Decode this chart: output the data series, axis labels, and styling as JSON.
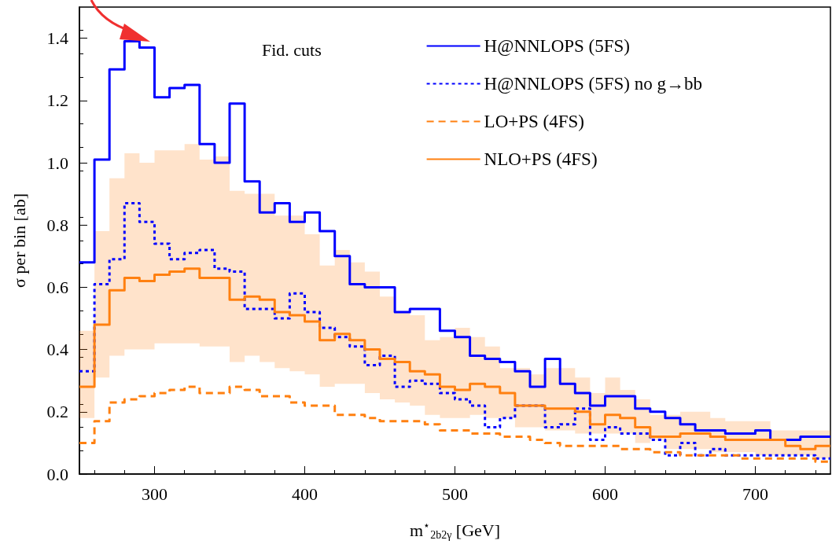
{
  "chart_data": {
    "type": "step",
    "xlabel": "m$^{⋆}$$_{2b2γ}$ [GeV]",
    "ylabel": "σ per bin [ab]",
    "annotations": [
      "Fid. cuts"
    ],
    "x": [
      250,
      260,
      270,
      280,
      290,
      300,
      310,
      320,
      330,
      340,
      350,
      360,
      370,
      380,
      390,
      400,
      410,
      420,
      430,
      440,
      450,
      460,
      470,
      480,
      490,
      500,
      510,
      520,
      530,
      540,
      550,
      560,
      570,
      580,
      590,
      600,
      610,
      620,
      630,
      640,
      650,
      660,
      670,
      680,
      690,
      700,
      710,
      720,
      730,
      740,
      750
    ],
    "series": [
      {
        "name": "H@NNLOPS (5FS)",
        "color": "#0000ff",
        "line_style": "solid",
        "values": [
          0.68,
          1.01,
          1.3,
          1.39,
          1.37,
          1.21,
          1.24,
          1.25,
          1.06,
          1.0,
          1.19,
          0.94,
          0.84,
          0.87,
          0.81,
          0.84,
          0.78,
          0.7,
          0.61,
          0.6,
          0.6,
          0.52,
          0.53,
          0.53,
          0.46,
          0.44,
          0.38,
          0.37,
          0.36,
          0.33,
          0.28,
          0.37,
          0.29,
          0.26,
          0.22,
          0.25,
          0.25,
          0.21,
          0.2,
          0.18,
          0.16,
          0.14,
          0.14,
          0.13,
          0.13,
          0.14,
          0.11,
          0.11,
          0.12,
          0.12,
          0.12
        ]
      },
      {
        "name": "H@NNLOPS (5FS) no g→bb",
        "color": "#0000ff",
        "line_style": "dotted",
        "values": [
          0.33,
          0.61,
          0.69,
          0.87,
          0.81,
          0.74,
          0.69,
          0.71,
          0.72,
          0.66,
          0.65,
          0.53,
          0.53,
          0.5,
          0.58,
          0.52,
          0.47,
          0.44,
          0.41,
          0.35,
          0.38,
          0.28,
          0.3,
          0.29,
          0.26,
          0.24,
          0.22,
          0.15,
          0.18,
          0.22,
          0.22,
          0.15,
          0.16,
          0.21,
          0.11,
          0.15,
          0.13,
          0.13,
          0.11,
          0.06,
          0.1,
          0.06,
          0.08,
          0.06,
          0.06,
          0.06,
          0.06,
          0.06,
          0.06,
          0.05,
          0.05
        ]
      },
      {
        "name": "LO+PS (4FS)",
        "color": "#ff8010",
        "line_style": "dashed",
        "values": [
          0.1,
          0.17,
          0.23,
          0.24,
          0.25,
          0.26,
          0.27,
          0.28,
          0.26,
          0.26,
          0.28,
          0.27,
          0.25,
          0.25,
          0.23,
          0.22,
          0.22,
          0.19,
          0.19,
          0.18,
          0.17,
          0.17,
          0.17,
          0.16,
          0.14,
          0.14,
          0.13,
          0.13,
          0.12,
          0.12,
          0.11,
          0.1,
          0.09,
          0.09,
          0.09,
          0.09,
          0.08,
          0.08,
          0.07,
          0.07,
          0.06,
          0.06,
          0.06,
          0.06,
          0.05,
          0.05,
          0.05,
          0.05,
          0.05,
          0.04,
          0.04
        ]
      },
      {
        "name": "NLO+PS (4FS)",
        "color": "#ff8010",
        "line_style": "solid",
        "values": [
          0.28,
          0.48,
          0.59,
          0.63,
          0.62,
          0.64,
          0.65,
          0.66,
          0.63,
          0.63,
          0.56,
          0.57,
          0.56,
          0.52,
          0.51,
          0.49,
          0.43,
          0.45,
          0.43,
          0.4,
          0.37,
          0.36,
          0.33,
          0.32,
          0.28,
          0.27,
          0.29,
          0.28,
          0.26,
          0.22,
          0.22,
          0.21,
          0.21,
          0.2,
          0.16,
          0.19,
          0.18,
          0.15,
          0.12,
          0.12,
          0.13,
          0.13,
          0.12,
          0.11,
          0.11,
          0.11,
          0.11,
          0.09,
          0.08,
          0.09,
          0.09
        ],
        "lower": [
          0.18,
          0.31,
          0.38,
          0.4,
          0.4,
          0.42,
          0.42,
          0.42,
          0.41,
          0.41,
          0.36,
          0.38,
          0.36,
          0.34,
          0.33,
          0.32,
          0.28,
          0.29,
          0.29,
          0.26,
          0.24,
          0.23,
          0.22,
          0.19,
          0.18,
          0.18,
          0.19,
          0.18,
          0.18,
          0.15,
          0.15,
          0.14,
          0.14,
          0.13,
          0.13,
          0.13,
          0.13,
          0.1,
          0.11,
          0.08,
          0.08,
          0.08,
          0.07,
          0.07,
          0.07,
          0.06,
          0.06,
          0.06,
          0.06,
          0.05,
          0.05
        ],
        "upper": [
          0.46,
          0.78,
          0.95,
          1.03,
          1.0,
          1.04,
          1.04,
          1.06,
          1.01,
          1.02,
          0.91,
          0.9,
          0.9,
          0.83,
          0.83,
          0.77,
          0.67,
          0.72,
          0.68,
          0.65,
          0.57,
          0.52,
          0.51,
          0.43,
          0.44,
          0.47,
          0.44,
          0.41,
          0.34,
          0.34,
          0.32,
          0.34,
          0.34,
          0.31,
          0.26,
          0.31,
          0.27,
          0.24,
          0.19,
          0.19,
          0.2,
          0.2,
          0.18,
          0.17,
          0.17,
          0.17,
          0.14,
          0.14,
          0.14,
          0.14,
          0.14
        ]
      }
    ],
    "xlim": [
      250,
      750
    ],
    "xticks": [
      300,
      400,
      500,
      600,
      700
    ],
    "ylim": [
      0,
      1.5
    ],
    "yticks": [
      {
        "value": 0,
        "label": "0.0"
      },
      {
        "value": 0.2,
        "label": "0.2"
      },
      {
        "value": 0.4,
        "label": "0.4"
      },
      {
        "value": 0.6,
        "label": "0.6"
      },
      {
        "value": 0.8,
        "label": "0.8"
      },
      {
        "value": 1.0,
        "label": "1.0"
      },
      {
        "value": 1.2,
        "label": "1.2"
      },
      {
        "value": 1.4,
        "label": "1.4"
      }
    ],
    "grid": false,
    "legend": "top right"
  }
}
